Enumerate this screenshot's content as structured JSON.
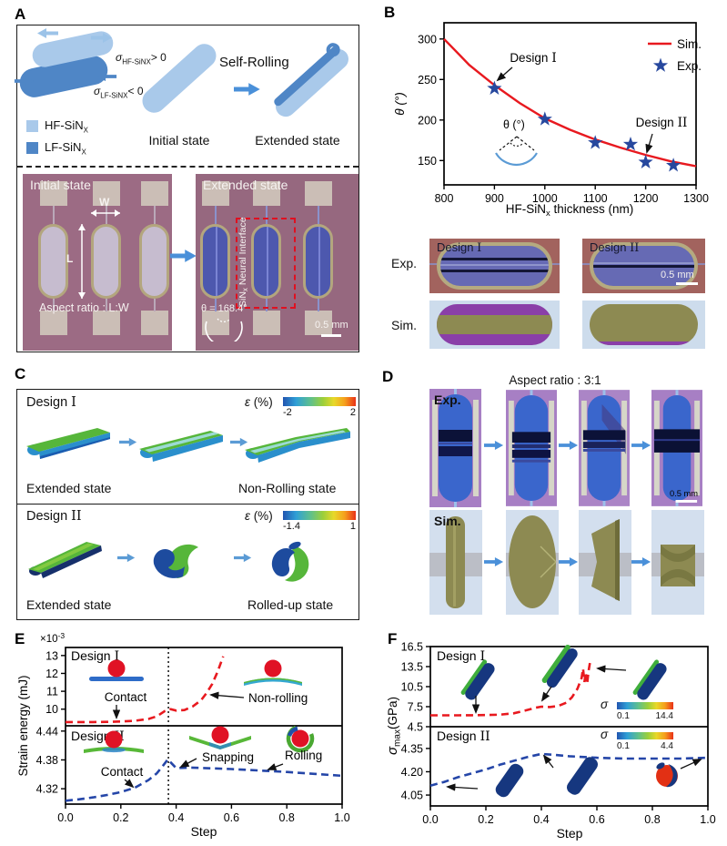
{
  "colors": {
    "sim_red": "#e8191f",
    "exp_blue": "#27489e",
    "curve_blue": "#2546a8",
    "arrow_blue": "#4a90d9",
    "hf_light_blue": "#a9c9ea",
    "lf_blue": "#4f86c6",
    "olive": "#8d8a52",
    "purple": "#8a3fa8"
  },
  "a": {
    "label": "A",
    "sigma_hf": {
      "sym": "σ",
      "sub": "HF-SiNX",
      "rest": "> 0"
    },
    "sigma_lf": {
      "sym": "σ",
      "sub": "LF-SiNX",
      "rest": "< 0"
    },
    "legend_hf": {
      "main": "HF-SiN",
      "sub": "X"
    },
    "legend_lf": {
      "main": "LF-SiN",
      "sub": "X"
    },
    "initial_state": "Initial state",
    "self_rolling": "Self-Rolling",
    "extended_state": "Extended state",
    "micro_left": {
      "title": "Initial state",
      "w": "W",
      "l": "L",
      "aspect": "Aspect ratio : L:W"
    },
    "micro_right": {
      "title": "Extended state",
      "device": {
        "main": "SiN",
        "sub": "x",
        "rest": " Neural Interface"
      },
      "theta": "θ = 168.4°",
      "scale": "0.5 mm"
    }
  },
  "b": {
    "label": "B",
    "chart": {
      "ylabel": "θ (°)",
      "xlabel": {
        "main": "HF-SiN",
        "sub": "x",
        "rest": " thickness (nm)"
      },
      "inset": "θ (°)",
      "design1": {
        "word": "Design",
        "num": "I"
      },
      "design2": {
        "word": "Design",
        "num": "II"
      }
    },
    "images": {
      "row_exp": "Exp.",
      "row_sim": "Sim.",
      "design1": {
        "word": "Design",
        "num": "I"
      },
      "design2": {
        "word": "Design",
        "num": "II"
      },
      "scale": "0.5 mm"
    }
  },
  "c": {
    "label": "C",
    "design1": {
      "title": {
        "word": "Design",
        "num": "I"
      },
      "eps": {
        "sym": "ε",
        "rest": " (%)"
      },
      "cb_min": "-2",
      "cb_max": "2",
      "state_left": "Extended state",
      "state_right": "Non-Rolling state"
    },
    "design2": {
      "title": {
        "word": "Design",
        "num": "II"
      },
      "eps": {
        "sym": "ε",
        "rest": " (%)"
      },
      "cb_min": "-1.4",
      "cb_max": "1",
      "state_left": "Extended state",
      "state_right": "Rolled-up state"
    }
  },
  "d": {
    "label": "D",
    "title": "Aspect ratio : 3:1",
    "row_exp": "Exp.",
    "row_sim": "Sim.",
    "scale": "0.5 mm"
  },
  "e": {
    "label": "E",
    "exponent": {
      "main": "×10",
      "sup": "-3"
    },
    "ylabel": "Strain energy (mJ)",
    "xlabel": "Step",
    "design1": {
      "title": {
        "word": "Design",
        "num": "I"
      },
      "ann_contact": "Contact",
      "ann_nonrolling": "Non-rolling"
    },
    "design2": {
      "title": {
        "word": "Design",
        "num": "II"
      },
      "ann_contact": "Contact",
      "ann_snapping": "Snapping",
      "ann_rolling": "Rolling"
    }
  },
  "f": {
    "label": "F",
    "ylabel": {
      "sym": "σ",
      "sub": "max",
      "rest": "(GPa)"
    },
    "xlabel": "Step",
    "design1": {
      "title": {
        "word": "Design",
        "num": "I"
      },
      "sigma": "σ",
      "cb_min": "0.1",
      "cb_max": "14.4"
    },
    "design2": {
      "title": {
        "word": "Design",
        "num": "II"
      },
      "sigma": "σ",
      "cb_min": "0.1",
      "cb_max": "4.4"
    }
  },
  "chart_data": [
    {
      "id": "theta_vs_thickness",
      "type": "line+scatter",
      "title": "",
      "xlabel": "HF-SiNx thickness (nm)",
      "ylabel": "θ (°)",
      "xlim": [
        800,
        1300
      ],
      "ylim": [
        120,
        320
      ],
      "xticks": [
        "800",
        "900",
        "1000",
        "1100",
        "1200",
        "1300"
      ],
      "yticks": [
        "150",
        "200",
        "250",
        "300"
      ],
      "legend_position": "top-right",
      "grid": false,
      "series": [
        {
          "name": "Sim.",
          "type": "line",
          "color": "#e8191f",
          "x": [
            800,
            850,
            900,
            950,
            1000,
            1050,
            1100,
            1150,
            1200,
            1250,
            1300
          ],
          "y": [
            300,
            268,
            243,
            221,
            202,
            188,
            176,
            166,
            157,
            149,
            143
          ]
        },
        {
          "name": "Exp.",
          "type": "star-scatter",
          "color": "#27489e",
          "x": [
            900,
            1000,
            1100,
            1170,
            1200,
            1255
          ],
          "y": [
            239,
            201,
            172,
            170,
            148,
            144
          ]
        }
      ],
      "annotations": [
        "Design I",
        "Design II"
      ]
    },
    {
      "id": "strain_energy_vs_step",
      "type": "line",
      "xlabel": "Step",
      "ylabel": "Strain energy (mJ)",
      "scale_note": "×10⁻³",
      "xlim": [
        0,
        1
      ],
      "xticks": [
        "0.0",
        "0.2",
        "0.4",
        "0.6",
        "0.8",
        "1.0"
      ],
      "vline_x": 0.372,
      "grid": false,
      "subplots": [
        {
          "name": "Design I",
          "color": "#e8191f",
          "ylim": [
            9.07,
            13.45
          ],
          "yticks": [
            "10",
            "11",
            "12",
            "13"
          ],
          "x": [
            0,
            0.05,
            0.1,
            0.15,
            0.2,
            0.25,
            0.3,
            0.33,
            0.36,
            0.38,
            0.4,
            0.43,
            0.46,
            0.49,
            0.51,
            0.53,
            0.55,
            0.57
          ],
          "y": [
            9.28,
            9.28,
            9.28,
            9.29,
            9.31,
            9.35,
            9.45,
            9.6,
            9.9,
            10.0,
            9.92,
            9.95,
            10.15,
            10.5,
            10.9,
            11.4,
            12.1,
            12.95
          ],
          "annotations": [
            "Contact",
            "Non-rolling"
          ]
        },
        {
          "name": "Design II",
          "color": "#2546a8",
          "ylim": [
            4.288,
            4.451
          ],
          "yticks": [
            "4.32",
            "4.38",
            "4.44"
          ],
          "x": [
            0,
            0.05,
            0.1,
            0.15,
            0.2,
            0.25,
            0.3,
            0.33,
            0.35,
            0.37,
            0.385,
            0.4,
            0.45,
            0.5,
            0.6,
            0.7,
            0.8,
            0.9,
            1.0
          ],
          "y": [
            4.295,
            4.298,
            4.302,
            4.307,
            4.313,
            4.322,
            4.338,
            4.352,
            4.366,
            4.381,
            4.372,
            4.363,
            4.364,
            4.363,
            4.361,
            4.358,
            4.355,
            4.351,
            4.347
          ],
          "annotations": [
            "Contact",
            "Snapping",
            "Rolling"
          ]
        }
      ]
    },
    {
      "id": "sigma_max_vs_step",
      "type": "line",
      "xlabel": "Step",
      "ylabel": "σmax (GPa)",
      "xlim": [
        0,
        1
      ],
      "xticks": [
        "0.0",
        "0.2",
        "0.4",
        "0.6",
        "0.8",
        "1.0"
      ],
      "grid": false,
      "subplots": [
        {
          "name": "Design I",
          "color": "#e8191f",
          "ylim": [
            4.5,
            16.5
          ],
          "yticks": [
            "4.5",
            "7.5",
            "10.5",
            "13.5",
            "16.5"
          ],
          "colorbar": {
            "label": "σ",
            "min": "0.1",
            "max": "14.4"
          },
          "x": [
            0,
            0.05,
            0.1,
            0.15,
            0.2,
            0.25,
            0.3,
            0.34,
            0.38,
            0.4,
            0.43,
            0.46,
            0.49,
            0.51,
            0.53,
            0.545,
            0.55,
            0.555,
            0.56,
            0.565,
            0.57,
            0.575
          ],
          "y": [
            6.2,
            6.2,
            6.2,
            6.22,
            6.25,
            6.3,
            6.5,
            6.9,
            7.35,
            7.5,
            7.45,
            7.6,
            8.1,
            8.9,
            10.2,
            11.8,
            13.2,
            11.2,
            12.6,
            10.9,
            12.8,
            14.1
          ]
        },
        {
          "name": "Design II",
          "color": "#2546a8",
          "ylim": [
            3.98,
            4.49
          ],
          "yticks": [
            "4.05",
            "4.20",
            "4.35"
          ],
          "colorbar": {
            "label": "σ",
            "min": "0.1",
            "max": "4.4"
          },
          "x": [
            0,
            0.05,
            0.1,
            0.15,
            0.2,
            0.25,
            0.3,
            0.35,
            0.4,
            0.45,
            0.5,
            0.6,
            0.7,
            0.8,
            0.9,
            1.0
          ],
          "y": [
            4.11,
            4.135,
            4.165,
            4.19,
            4.215,
            4.245,
            4.27,
            4.295,
            4.315,
            4.308,
            4.3,
            4.29,
            4.285,
            4.285,
            4.285,
            4.29
          ]
        }
      ]
    }
  ]
}
